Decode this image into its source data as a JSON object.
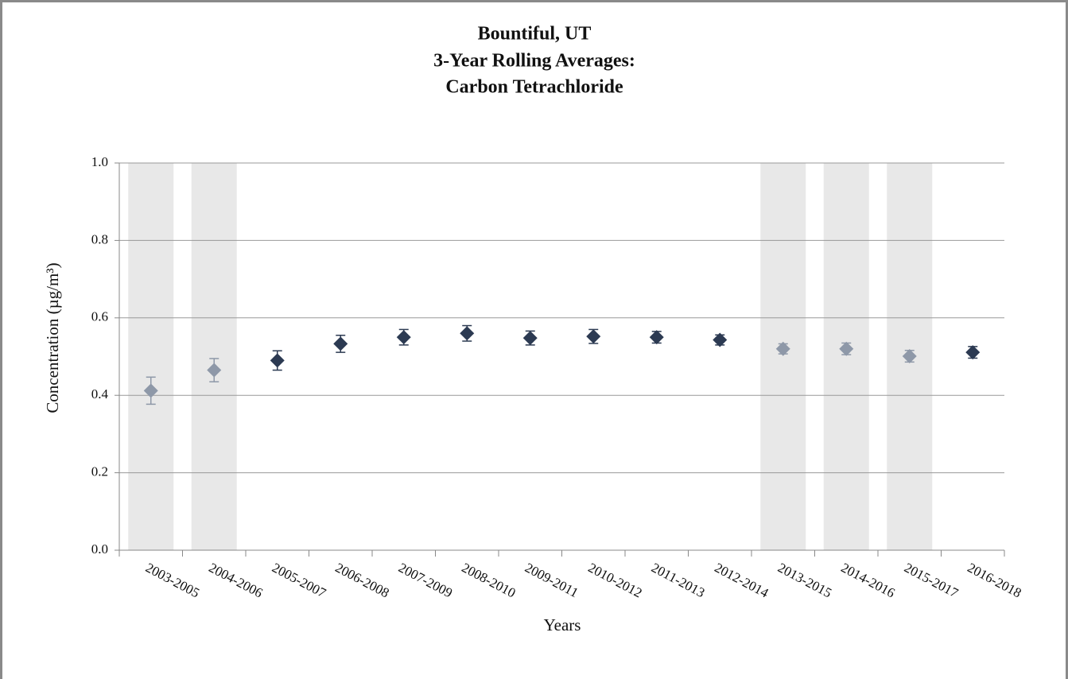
{
  "chart_data": {
    "type": "errorpoint",
    "title": [
      "Bountiful, UT",
      "3-Year Rolling Averages:",
      "Carbon Tetrachloride"
    ],
    "x_label": "Years",
    "y_label": "Concentration (µg/m³)",
    "categories": [
      "2003-2005",
      "2004-2006",
      "2005-2007",
      "2006-2008",
      "2007-2009",
      "2008-2010",
      "2009-2011",
      "2010-2012",
      "2011-2013",
      "2012-2014",
      "2013-2015",
      "2014-2016",
      "2015-2017",
      "2016-2018"
    ],
    "values": [
      0.412,
      0.465,
      0.49,
      0.533,
      0.55,
      0.56,
      0.548,
      0.552,
      0.55,
      0.543,
      0.52,
      0.52,
      0.501,
      0.511
    ],
    "errors": [
      0.035,
      0.03,
      0.025,
      0.022,
      0.02,
      0.02,
      0.018,
      0.018,
      0.015,
      0.013,
      0.013,
      0.015,
      0.015,
      0.015
    ],
    "shaded": [
      true,
      true,
      false,
      false,
      false,
      false,
      false,
      false,
      false,
      false,
      true,
      true,
      true,
      false
    ],
    "colors": [
      "#8e98a8",
      "#8e98a8",
      "#2c3a52",
      "#2c3a52",
      "#2c3a52",
      "#2c3a52",
      "#2c3a52",
      "#2c3a52",
      "#2c3a52",
      "#2c3a52",
      "#8e98a8",
      "#8e98a8",
      "#8e98a8",
      "#2c3a52"
    ],
    "shade_color": "#e8e8e8",
    "ylim": [
      0,
      1
    ],
    "yticks": [
      {
        "value": 0,
        "label": "0.0"
      },
      0.2,
      0.4,
      0.6,
      0.8,
      {
        "value": 1,
        "label": "1.0"
      }
    ],
    "grid": true
  }
}
